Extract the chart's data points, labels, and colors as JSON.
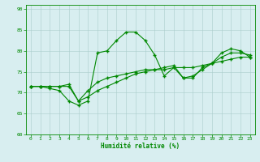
{
  "xlabel": "Humidité relative (%)",
  "bg_color": "#d8eef0",
  "grid_color": "#aacccc",
  "line_color": "#008800",
  "xlim": [
    -0.5,
    23.5
  ],
  "ylim": [
    60,
    91
  ],
  "yticks": [
    60,
    65,
    70,
    75,
    80,
    85,
    90
  ],
  "xticks": [
    0,
    1,
    2,
    3,
    4,
    5,
    6,
    7,
    8,
    9,
    10,
    11,
    12,
    13,
    14,
    15,
    16,
    17,
    18,
    19,
    20,
    21,
    22,
    23
  ],
  "series1_x": [
    0,
    1,
    2,
    3,
    4,
    5,
    6,
    7,
    8,
    9,
    10,
    11,
    12,
    13,
    14,
    15,
    16,
    17,
    18,
    19,
    20,
    21,
    22,
    23
  ],
  "series1_y": [
    71.5,
    71.5,
    71.0,
    70.5,
    68.0,
    67.0,
    68.0,
    79.5,
    80.0,
    82.5,
    84.5,
    84.5,
    82.5,
    79.0,
    74.0,
    76.0,
    73.5,
    73.5,
    76.0,
    77.0,
    79.5,
    80.5,
    80.0,
    78.5
  ],
  "series2_x": [
    0,
    1,
    2,
    3,
    4,
    5,
    6,
    7,
    8,
    9,
    10,
    11,
    12,
    13,
    14,
    15,
    16,
    17,
    18,
    19,
    20,
    21,
    22,
    23
  ],
  "series2_y": [
    71.5,
    71.5,
    71.5,
    71.5,
    71.5,
    68.0,
    70.5,
    72.5,
    73.5,
    74.0,
    74.5,
    75.0,
    75.5,
    75.5,
    75.5,
    76.0,
    76.0,
    76.0,
    76.5,
    77.0,
    77.5,
    78.0,
    78.5,
    78.5
  ],
  "series3_x": [
    0,
    1,
    2,
    3,
    4,
    5,
    6,
    7,
    8,
    9,
    10,
    11,
    12,
    13,
    14,
    15,
    16,
    17,
    18,
    19,
    20,
    21,
    22,
    23
  ],
  "series3_y": [
    71.5,
    71.5,
    71.5,
    71.5,
    72.0,
    68.0,
    69.0,
    70.5,
    71.5,
    72.5,
    73.5,
    74.5,
    75.0,
    75.5,
    76.0,
    76.5,
    73.5,
    74.0,
    75.5,
    77.0,
    78.5,
    79.5,
    79.5,
    79.0
  ]
}
